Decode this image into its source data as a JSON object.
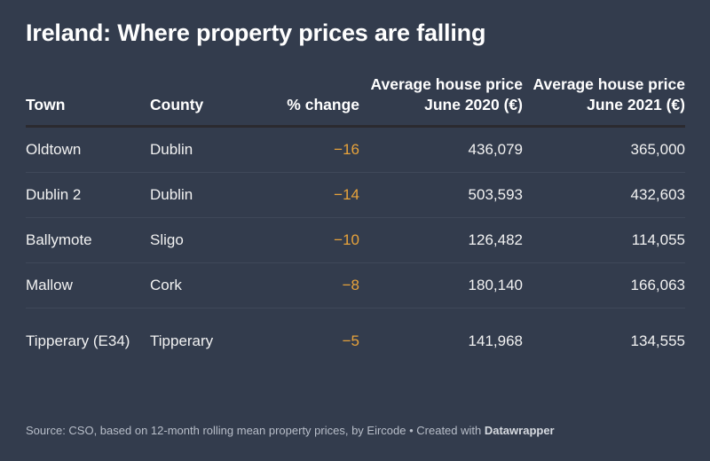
{
  "title": "Ireland: Where property prices are falling",
  "colors": {
    "background": "#333c4d",
    "negative_change": "#e8a33b",
    "text": "#ffffff",
    "footer_text": "#b8bec9"
  },
  "chart_data": {
    "type": "table",
    "title": "Ireland: Where property prices are falling",
    "columns": [
      "Town",
      "County",
      "% change",
      "Average house price June 2020 (€)",
      "Average house price June 2021 (€)"
    ],
    "rows": [
      {
        "town": "Oldtown",
        "county": "Dublin",
        "change": "−16",
        "price_2020": "436,079",
        "price_2021": "365,000"
      },
      {
        "town": "Dublin 2",
        "county": "Dublin",
        "change": "−14",
        "price_2020": "503,593",
        "price_2021": "432,603"
      },
      {
        "town": "Ballymote",
        "county": "Sligo",
        "change": "−10",
        "price_2020": "126,482",
        "price_2021": "114,055"
      },
      {
        "town": "Mallow",
        "county": "Cork",
        "change": "−8",
        "price_2020": "180,140",
        "price_2021": "166,063"
      },
      {
        "town": "Tipperary (E34)",
        "county": "Tipperary",
        "change": "−5",
        "price_2020": "141,968",
        "price_2021": "134,555"
      }
    ]
  },
  "footer": {
    "source": "Source: CSO, based on 12-month rolling mean property prices, by Eircode • Created with ",
    "brand": "Datawrapper"
  }
}
